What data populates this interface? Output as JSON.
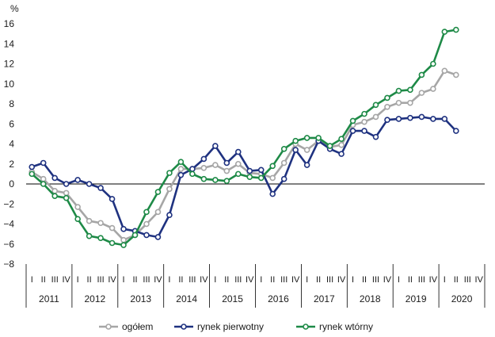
{
  "chart_data": {
    "type": "line",
    "title": "",
    "ylabel": "%",
    "xlabel": "",
    "ylim": [
      -8,
      16
    ],
    "yticks": [
      -8,
      -6,
      -4,
      -2,
      0,
      2,
      4,
      6,
      8,
      10,
      12,
      14,
      16
    ],
    "grid": false,
    "legend_position": "bottom-center",
    "quarters": [
      "I",
      "II",
      "III",
      "IV"
    ],
    "years": [
      "2011",
      "2012",
      "2013",
      "2014",
      "2015",
      "2016",
      "2017",
      "2018",
      "2019",
      "2020"
    ],
    "series": [
      {
        "name": "ogółem",
        "color": "#a6a6a6",
        "values": [
          1.2,
          0.5,
          -0.7,
          -0.9,
          -2.3,
          -3.7,
          -3.9,
          -4.4,
          -5.6,
          -5.1,
          -4.0,
          -2.8,
          -0.5,
          1.5,
          1.5,
          1.6,
          1.9,
          1.3,
          2.0,
          1.1,
          1.0,
          0.6,
          2.1,
          4.0,
          3.4,
          4.3,
          3.7,
          3.9,
          5.9,
          6.2,
          6.7,
          7.7,
          8.1,
          8.1,
          9.1,
          9.5,
          11.3,
          10.9
        ]
      },
      {
        "name": "rynek pierwotny",
        "color": "#1f3280",
        "values": [
          1.7,
          2.1,
          0.6,
          0.0,
          0.4,
          0.0,
          -0.4,
          -1.5,
          -4.5,
          -4.7,
          -5.1,
          -5.3,
          -3.1,
          0.9,
          1.5,
          2.5,
          3.8,
          2.1,
          3.2,
          1.3,
          1.4,
          -1.0,
          0.5,
          3.4,
          1.9,
          4.3,
          3.5,
          3.0,
          5.3,
          5.3,
          4.7,
          6.4,
          6.5,
          6.6,
          6.7,
          6.5,
          6.5,
          5.3
        ]
      },
      {
        "name": "rynek wtórny",
        "color": "#1e8a47",
        "values": [
          1.0,
          0.0,
          -1.2,
          -1.4,
          -3.5,
          -5.2,
          -5.4,
          -5.9,
          -6.1,
          -5.1,
          -2.8,
          -0.8,
          1.1,
          2.2,
          1.0,
          0.5,
          0.4,
          0.3,
          1.0,
          0.7,
          0.6,
          1.8,
          3.5,
          4.3,
          4.6,
          4.6,
          3.8,
          4.5,
          6.3,
          7.0,
          7.9,
          8.6,
          9.3,
          9.4,
          10.9,
          12.0,
          15.2,
          15.4
        ]
      }
    ]
  }
}
